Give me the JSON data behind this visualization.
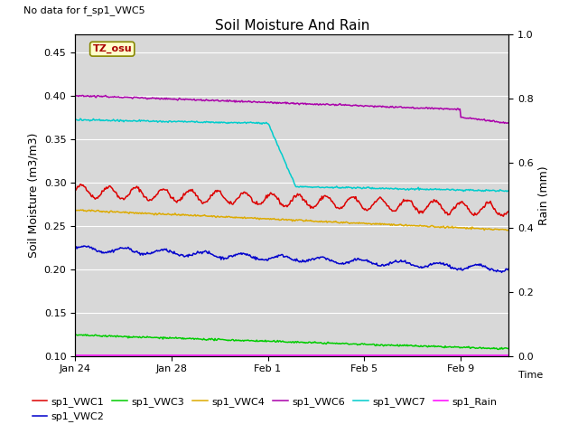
{
  "title": "Soil Moisture And Rain",
  "no_data_label": "No data for f_sp1_VWC5",
  "ylabel_left": "Soil Moisture (m3/m3)",
  "ylabel_right": "Rain (mm)",
  "xlabel": "Time",
  "timezone_label": "TZ_osu",
  "ylim_left": [
    0.1,
    0.47
  ],
  "ylim_right": [
    0.0,
    1.0
  ],
  "xtick_days": [
    0,
    4,
    8,
    12,
    16
  ],
  "xtick_labels": [
    "Jan 24",
    "Jan 28",
    "Feb 1",
    "Feb 5",
    "Feb 9"
  ],
  "axes_facecolor": "#d8d8d8",
  "grid_color": "white",
  "series": {
    "sp1_VWC1": {
      "color": "#dd0000"
    },
    "sp1_VWC2": {
      "color": "#0000cc"
    },
    "sp1_VWC3": {
      "color": "#00cc00"
    },
    "sp1_VWC4": {
      "color": "#ddaa00"
    },
    "sp1_VWC6": {
      "color": "#aa00aa"
    },
    "sp1_VWC7": {
      "color": "#00cccc"
    },
    "sp1_Rain": {
      "color": "#ff00ff"
    }
  },
  "legend_order": [
    "sp1_VWC1",
    "sp1_VWC2",
    "sp1_VWC3",
    "sp1_VWC4",
    "sp1_VWC6",
    "sp1_VWC7",
    "sp1_Rain"
  ]
}
